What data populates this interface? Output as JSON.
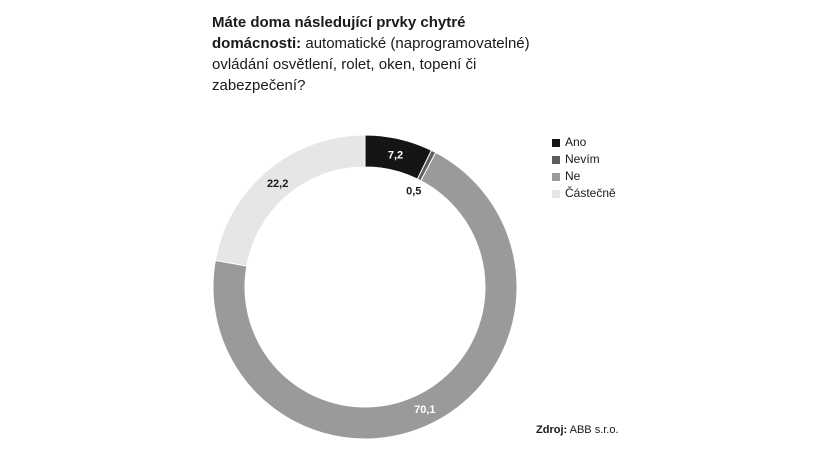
{
  "header": {
    "title_bold": "Máte doma následující prvky chytré domácnosti:",
    "title_regular": " automatické (naprogramovatelné) ovládání osvětlení, rolet, oken, topení či zabezpečení?"
  },
  "chart_data": {
    "type": "pie",
    "title": "Máte doma následující prvky chytré domácnosti: automatické (naprogramovatelné) ovládání osvětlení, rolet, oken, topení či zabezpečení?",
    "donut": true,
    "categories": [
      "Ano",
      "Nevím",
      "Ne",
      "Částečně"
    ],
    "values": [
      7.2,
      0.5,
      70.1,
      22.2
    ],
    "labels": [
      "7,2",
      "0,5",
      "70,1",
      "22,2"
    ],
    "colors": [
      "#151515",
      "#5e5e5e",
      "#9a9a9a",
      "#e6e6e6"
    ],
    "label_colors": [
      "#ffffff",
      "#1a1a1a",
      "#ffffff",
      "#1a1a1a"
    ],
    "legend_position": "right"
  },
  "source": {
    "label": "Zdroj:",
    "value": "ABB s.r.o."
  }
}
